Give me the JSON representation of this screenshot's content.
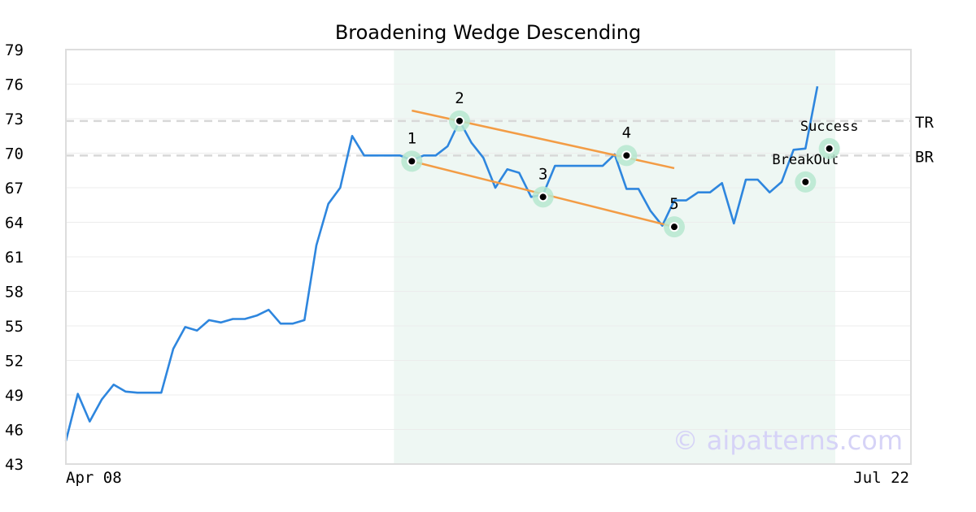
{
  "chart_data": {
    "type": "line",
    "title": "Broadening Wedge Descending",
    "ylim": [
      43,
      79
    ],
    "y_ticks": [
      "79",
      "76",
      "73",
      "70",
      "67",
      "64",
      "61",
      "58",
      "55",
      "52",
      "49",
      "46",
      "43"
    ],
    "x_ticks": [
      "Apr 08",
      "Jul 22"
    ],
    "grid": true,
    "series": [
      {
        "values": [
          45.0,
          49.1,
          46.7,
          48.6,
          49.9,
          49.3,
          49.2,
          49.2,
          49.2,
          53.0,
          54.9,
          54.6,
          55.5,
          55.3,
          55.6,
          55.6,
          55.9,
          56.4,
          55.2,
          55.2,
          55.5,
          62.0,
          65.6,
          67.0,
          71.5,
          69.8,
          69.8,
          69.8,
          69.8,
          69.4,
          69.8,
          69.8,
          70.6,
          72.8,
          70.9,
          69.6,
          67.0,
          68.6,
          68.3,
          66.2,
          66.4,
          68.9,
          68.9,
          68.9,
          68.9,
          68.9,
          69.9,
          66.9,
          66.9,
          65.0,
          63.7,
          65.9,
          65.9,
          66.6,
          66.6,
          67.4,
          63.9,
          67.7,
          67.7,
          66.6,
          67.5,
          70.3,
          70.4,
          75.8
        ],
        "color": "#2e86de"
      }
    ],
    "pattern_region": {
      "x_start": 27.5,
      "x_end": 64.5
    },
    "points": [
      {
        "label": "1",
        "x": 29,
        "y": 69.3
      },
      {
        "label": "2",
        "x": 33,
        "y": 72.8
      },
      {
        "label": "3",
        "x": 40,
        "y": 66.2
      },
      {
        "label": "4",
        "x": 47,
        "y": 69.8
      },
      {
        "label": "5",
        "x": 51,
        "y": 63.6
      },
      {
        "label": "BreakOut",
        "x": 62,
        "y": 67.5
      },
      {
        "label": "Success",
        "x": 64,
        "y": 70.4
      }
    ],
    "trendlines": [
      {
        "x1": 29,
        "y1": 73.7,
        "x2": 51,
        "y2": 68.7
      },
      {
        "x1": 29,
        "y1": 69.3,
        "x2": 51,
        "y2": 63.6
      }
    ],
    "levels": [
      {
        "label": "TR",
        "y": 72.8
      },
      {
        "label": "BR",
        "y": 69.8
      }
    ],
    "colors": {
      "line": "#2e86de",
      "trend": "#f39c45",
      "region": "#eef7f3",
      "marker_halo": "#b6e8cf",
      "level": "#d8d8d8",
      "axis": "#dddddd"
    },
    "watermark": "© aipatterns.com"
  }
}
